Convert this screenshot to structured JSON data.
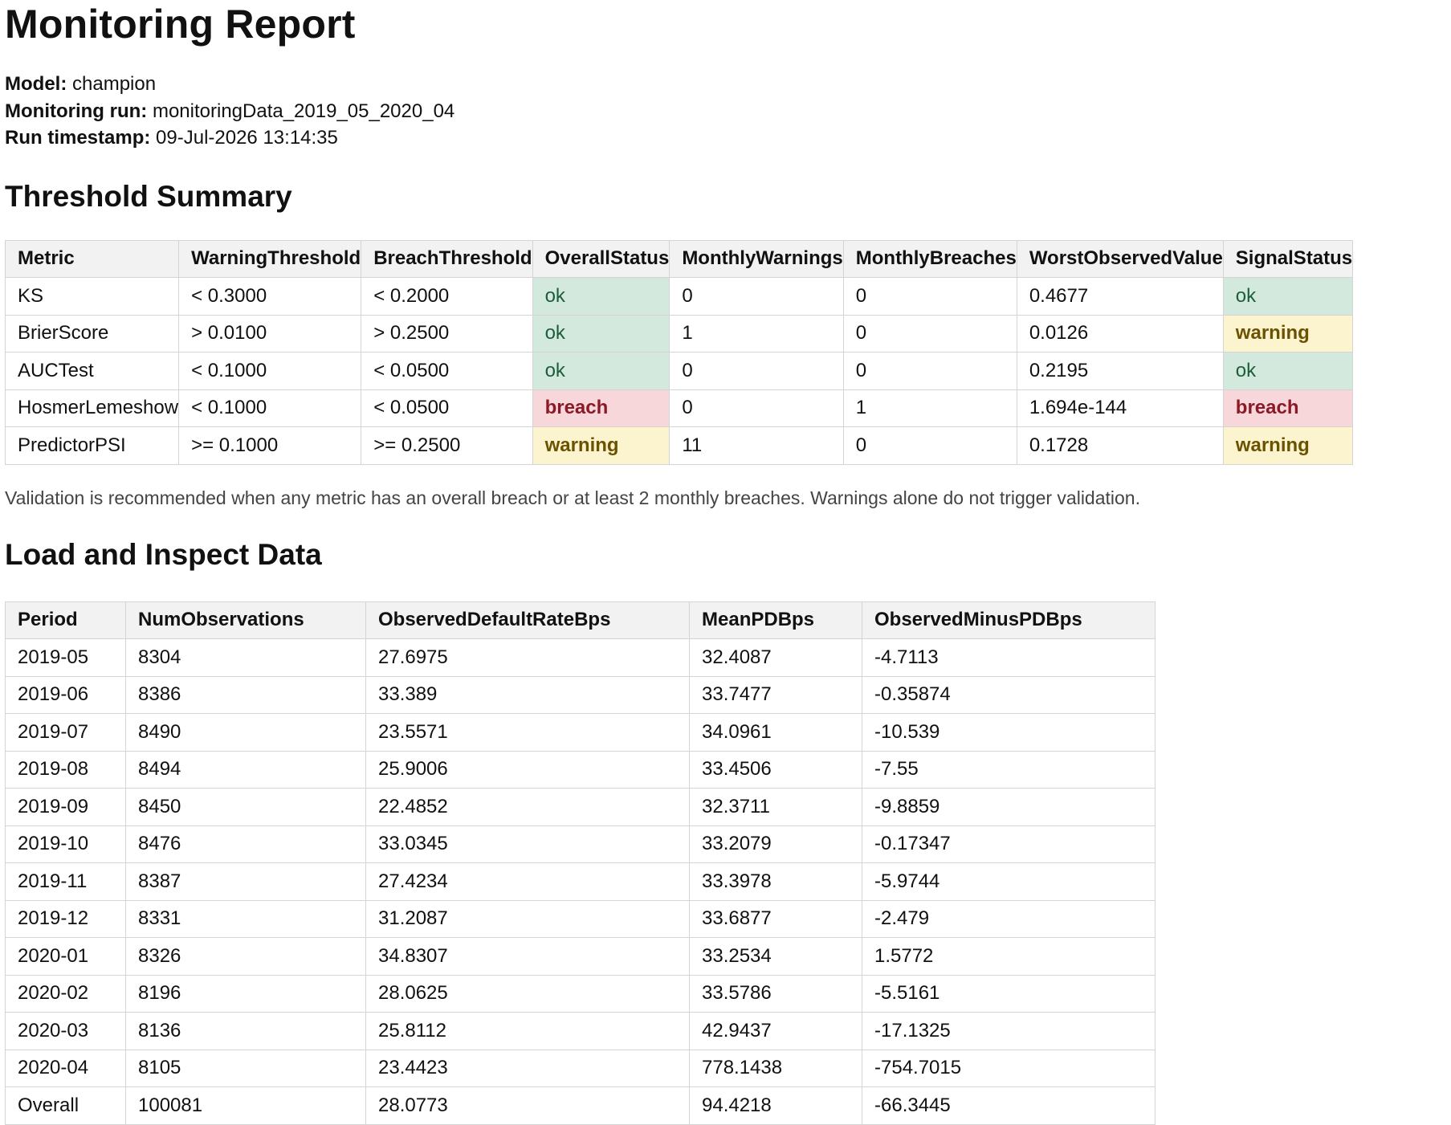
{
  "title": "Monitoring Report",
  "meta": {
    "model_label": "Model:",
    "model_value": "champion",
    "run_label": "Monitoring run:",
    "run_value": "monitoringData_2019_05_2020_04",
    "timestamp_label": "Run timestamp:",
    "timestamp_value": "09-Jul-2026 13:14:35"
  },
  "threshold_summary": {
    "heading": "Threshold Summary",
    "columns": [
      "Metric",
      "WarningThreshold",
      "BreachThreshold",
      "OverallStatus",
      "MonthlyWarnings",
      "MonthlyBreaches",
      "WorstObservedValue",
      "SignalStatus"
    ],
    "rows": [
      [
        "KS",
        "< 0.3000",
        "< 0.2000",
        "ok",
        "0",
        "0",
        "0.4677",
        "ok"
      ],
      [
        "BrierScore",
        "> 0.0100",
        "> 0.2500",
        "ok",
        "1",
        "0",
        "0.0126",
        "warning"
      ],
      [
        "AUCTest",
        "< 0.1000",
        "< 0.0500",
        "ok",
        "0",
        "0",
        "0.2195",
        "ok"
      ],
      [
        "HosmerLemeshow",
        "< 0.1000",
        "< 0.0500",
        "breach",
        "0",
        "1",
        "1.694e-144",
        "breach"
      ],
      [
        "PredictorPSI",
        ">= 0.1000",
        ">= 0.2500",
        "warning",
        "11",
        "0",
        "0.1728",
        "warning"
      ]
    ],
    "status_colors": {
      "ok": "#d4e9de",
      "warning": "#fcf3cf",
      "breach": "#f8d7db"
    },
    "note": "Validation is recommended when any metric has an overall breach or at least 2 monthly breaches. Warnings alone do not trigger validation."
  },
  "load_inspect": {
    "heading": "Load and Inspect Data",
    "columns": [
      "Period",
      "NumObservations",
      "ObservedDefaultRateBps",
      "MeanPDBps",
      "ObservedMinusPDBps"
    ],
    "rows": [
      [
        "2019-05",
        "8304",
        "27.6975",
        "32.4087",
        "-4.7113"
      ],
      [
        "2019-06",
        "8386",
        "33.389",
        "33.7477",
        "-0.35874"
      ],
      [
        "2019-07",
        "8490",
        "23.5571",
        "34.0961",
        "-10.539"
      ],
      [
        "2019-08",
        "8494",
        "25.9006",
        "33.4506",
        "-7.55"
      ],
      [
        "2019-09",
        "8450",
        "22.4852",
        "32.3711",
        "-9.8859"
      ],
      [
        "2019-10",
        "8476",
        "33.0345",
        "33.2079",
        "-0.17347"
      ],
      [
        "2019-11",
        "8387",
        "27.4234",
        "33.3978",
        "-5.9744"
      ],
      [
        "2019-12",
        "8331",
        "31.2087",
        "33.6877",
        "-2.479"
      ],
      [
        "2020-01",
        "8326",
        "34.8307",
        "33.2534",
        "1.5772"
      ],
      [
        "2020-02",
        "8196",
        "28.0625",
        "33.5786",
        "-5.5161"
      ],
      [
        "2020-03",
        "8136",
        "25.8112",
        "42.9437",
        "-17.1325"
      ],
      [
        "2020-04",
        "8105",
        "23.4423",
        "778.1438",
        "-754.7015"
      ],
      [
        "Overall",
        "100081",
        "28.0773",
        "94.4218",
        "-66.3445"
      ]
    ]
  }
}
